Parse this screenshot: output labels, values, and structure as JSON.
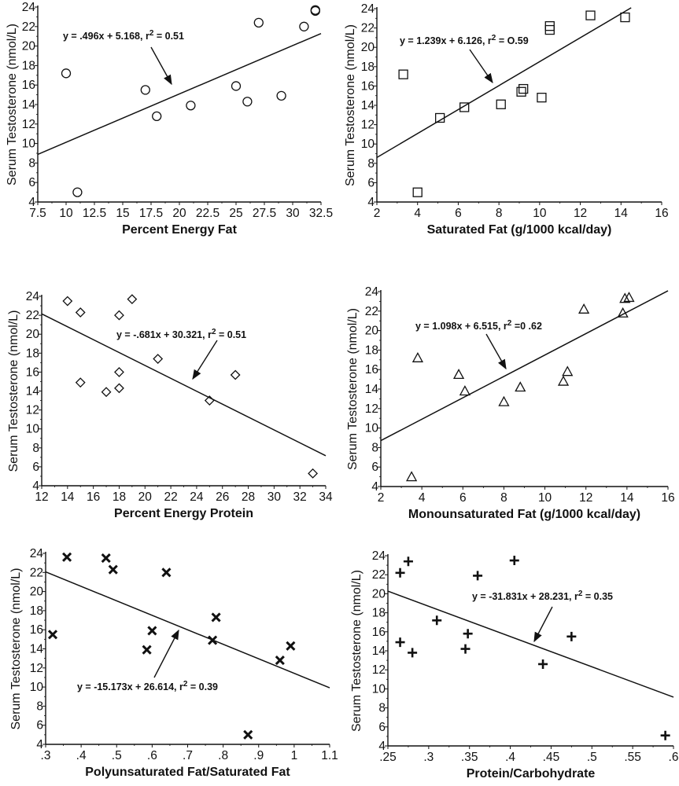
{
  "chart_data": [
    {
      "type": "scatter",
      "marker": "circle",
      "xlabel": "Percent Energy Fat",
      "ylabel": "Serum Testosterone  (nmol/L)",
      "xlim": [
        7.5,
        32.5
      ],
      "ylim": [
        4,
        24
      ],
      "xticks": [
        {
          "v": 7.5,
          "t": "7.5"
        },
        {
          "v": 10,
          "t": "10"
        },
        {
          "v": 12.5,
          "t": "12.5"
        },
        {
          "v": 15,
          "t": "15"
        },
        {
          "v": 17.5,
          "t": "17.5"
        },
        {
          "v": 20,
          "t": "20"
        },
        {
          "v": 22.5,
          "t": "22.5"
        },
        {
          "v": 25,
          "t": "25"
        },
        {
          "v": 27.5,
          "t": "27.5"
        },
        {
          "v": 30,
          "t": "30"
        },
        {
          "v": 32.5,
          "t": "32.5"
        }
      ],
      "yticks": [
        {
          "v": 4,
          "t": "4"
        },
        {
          "v": 6,
          "t": "6"
        },
        {
          "v": 8,
          "t": "8"
        },
        {
          "v": 10,
          "t": "10"
        },
        {
          "v": 12,
          "t": "12"
        },
        {
          "v": 14,
          "t": "14"
        },
        {
          "v": 16,
          "t": "16"
        },
        {
          "v": 18,
          "t": "18"
        },
        {
          "v": 20,
          "t": "20"
        },
        {
          "v": 22,
          "t": "22"
        },
        {
          "v": 24,
          "t": "24"
        }
      ],
      "points": [
        [
          10,
          17.2
        ],
        [
          11,
          5
        ],
        [
          17,
          15.5
        ],
        [
          18,
          12.8
        ],
        [
          21,
          13.9
        ],
        [
          25,
          15.9
        ],
        [
          26,
          14.3
        ],
        [
          27,
          22.4
        ],
        [
          29,
          14.9
        ],
        [
          31,
          22
        ],
        [
          32,
          23.7
        ],
        [
          32,
          23.6
        ]
      ],
      "fit": {
        "slope": 0.496,
        "intercept": 5.168,
        "x_range": [
          7.5,
          32.5
        ]
      },
      "equation": {
        "main": "y = .496x + 5.168, r",
        "sup": "2",
        "tail": " = 0.51"
      }
    },
    {
      "type": "scatter",
      "marker": "square",
      "xlabel": "Saturated Fat (g/1000 kcal/day)",
      "ylabel": "Serum Testosterone (nmol/L)",
      "xlim": [
        2,
        16
      ],
      "ylim": [
        4,
        24
      ],
      "xticks": [
        {
          "v": 2,
          "t": "2"
        },
        {
          "v": 4,
          "t": "4"
        },
        {
          "v": 6,
          "t": "6"
        },
        {
          "v": 8,
          "t": "8"
        },
        {
          "v": 10,
          "t": "10"
        },
        {
          "v": 12,
          "t": "12"
        },
        {
          "v": 14,
          "t": "14"
        },
        {
          "v": 16,
          "t": "16"
        }
      ],
      "yticks": [
        {
          "v": 4,
          "t": "4"
        },
        {
          "v": 6,
          "t": "6"
        },
        {
          "v": 8,
          "t": "8"
        },
        {
          "v": 10,
          "t": "10"
        },
        {
          "v": 12,
          "t": "12"
        },
        {
          "v": 14,
          "t": "14"
        },
        {
          "v": 16,
          "t": "16"
        },
        {
          "v": 18,
          "t": "18"
        },
        {
          "v": 20,
          "t": "20"
        },
        {
          "v": 22,
          "t": "22"
        },
        {
          "v": 24,
          "t": "24"
        }
      ],
      "points": [
        [
          3.3,
          17.2
        ],
        [
          4,
          5
        ],
        [
          5.1,
          12.7
        ],
        [
          6.3,
          13.8
        ],
        [
          8.1,
          14.1
        ],
        [
          9.1,
          15.4
        ],
        [
          9.2,
          15.7
        ],
        [
          10.1,
          14.8
        ],
        [
          10.5,
          21.8
        ],
        [
          10.5,
          22.2
        ],
        [
          12.5,
          23.3
        ],
        [
          14.2,
          23.1
        ]
      ],
      "fit": {
        "slope": 1.239,
        "intercept": 6.126,
        "x_range": [
          2,
          14.5
        ]
      },
      "equation": {
        "main": "y = 1.239x + 6.126, r",
        "sup": "2",
        "tail": " = O.59"
      }
    },
    {
      "type": "scatter",
      "marker": "diamond",
      "xlabel": "Percent Energy Protein",
      "ylabel": "Serum Testosterone (nmol/L)",
      "xlim": [
        12,
        34
      ],
      "ylim": [
        4,
        24
      ],
      "xticks": [
        {
          "v": 12,
          "t": "12"
        },
        {
          "v": 14,
          "t": "14"
        },
        {
          "v": 16,
          "t": "16"
        },
        {
          "v": 18,
          "t": "18"
        },
        {
          "v": 20,
          "t": "20"
        },
        {
          "v": 22,
          "t": "22"
        },
        {
          "v": 24,
          "t": "24"
        },
        {
          "v": 26,
          "t": "26"
        },
        {
          "v": 28,
          "t": "28"
        },
        {
          "v": 30,
          "t": "30"
        },
        {
          "v": 32,
          "t": "32"
        },
        {
          "v": 34,
          "t": "34"
        }
      ],
      "yticks": [
        {
          "v": 4,
          "t": "4"
        },
        {
          "v": 6,
          "t": "6"
        },
        {
          "v": 8,
          "t": "8"
        },
        {
          "v": 10,
          "t": "10"
        },
        {
          "v": 12,
          "t": "12"
        },
        {
          "v": 14,
          "t": "14"
        },
        {
          "v": 16,
          "t": "16"
        },
        {
          "v": 18,
          "t": "18"
        },
        {
          "v": 20,
          "t": "20"
        },
        {
          "v": 22,
          "t": "22"
        },
        {
          "v": 24,
          "t": "24"
        }
      ],
      "points": [
        [
          14,
          23.5
        ],
        [
          15,
          22.3
        ],
        [
          15,
          14.9
        ],
        [
          17,
          13.9
        ],
        [
          18,
          22
        ],
        [
          18,
          16
        ],
        [
          18,
          14.3
        ],
        [
          19,
          23.7
        ],
        [
          21,
          17.4
        ],
        [
          25,
          13
        ],
        [
          27,
          15.7
        ],
        [
          33,
          5.3
        ]
      ],
      "fit": {
        "slope": -0.681,
        "intercept": 30.321,
        "x_range": [
          12,
          34
        ]
      },
      "equation": {
        "main": "y = -.681x + 30.321, r",
        "sup": "2",
        "tail": " = 0.51"
      }
    },
    {
      "type": "scatter",
      "marker": "triangle",
      "xlabel": "Monounsaturated Fat (g/1000 kcal/day)",
      "ylabel": "Serum Testosterone (nmol/L)",
      "xlim": [
        2,
        16
      ],
      "ylim": [
        4,
        24
      ],
      "xticks": [
        {
          "v": 2,
          "t": "2"
        },
        {
          "v": 4,
          "t": "4"
        },
        {
          "v": 6,
          "t": "6"
        },
        {
          "v": 8,
          "t": "8"
        },
        {
          "v": 10,
          "t": "10"
        },
        {
          "v": 12,
          "t": "12"
        },
        {
          "v": 14,
          "t": "14"
        },
        {
          "v": 16,
          "t": "16"
        }
      ],
      "yticks": [
        {
          "v": 4,
          "t": "4"
        },
        {
          "v": 6,
          "t": "6"
        },
        {
          "v": 8,
          "t": "8"
        },
        {
          "v": 10,
          "t": "10"
        },
        {
          "v": 12,
          "t": "12"
        },
        {
          "v": 14,
          "t": "14"
        },
        {
          "v": 16,
          "t": "16"
        },
        {
          "v": 18,
          "t": "18"
        },
        {
          "v": 20,
          "t": "20"
        },
        {
          "v": 22,
          "t": "22"
        },
        {
          "v": 24,
          "t": "24"
        }
      ],
      "points": [
        [
          3.5,
          5
        ],
        [
          3.8,
          17.2
        ],
        [
          5.8,
          15.5
        ],
        [
          6.1,
          13.8
        ],
        [
          8,
          12.7
        ],
        [
          8.8,
          14.2
        ],
        [
          10.9,
          14.8
        ],
        [
          11.1,
          15.8
        ],
        [
          11.9,
          22.2
        ],
        [
          13.8,
          21.8
        ],
        [
          13.9,
          23.3
        ],
        [
          14.1,
          23.4
        ]
      ],
      "fit": {
        "slope": 1.098,
        "intercept": 6.515,
        "x_range": [
          2,
          16
        ]
      },
      "equation": {
        "main": "y = 1.098x + 6.515, r",
        "sup": "2",
        "tail": " =0 .62"
      }
    },
    {
      "type": "scatter",
      "marker": "x",
      "xlabel": "Polyunsaturated Fat/Saturated Fat",
      "ylabel": "Serum Testosterone (nmol/L)",
      "xlim": [
        0.3,
        1.1
      ],
      "ylim": [
        4,
        24
      ],
      "xticks": [
        {
          "v": 0.3,
          "t": ".3"
        },
        {
          "v": 0.4,
          "t": ".4"
        },
        {
          "v": 0.5,
          "t": ".5"
        },
        {
          "v": 0.6,
          "t": ".6"
        },
        {
          "v": 0.7,
          "t": ".7"
        },
        {
          "v": 0.8,
          "t": ".8"
        },
        {
          "v": 0.9,
          "t": ".9"
        },
        {
          "v": 1.0,
          "t": "1"
        },
        {
          "v": 1.1,
          "t": "1.1"
        }
      ],
      "yticks": [
        {
          "v": 4,
          "t": "4"
        },
        {
          "v": 6,
          "t": "6"
        },
        {
          "v": 8,
          "t": "8"
        },
        {
          "v": 10,
          "t": "10"
        },
        {
          "v": 12,
          "t": "12"
        },
        {
          "v": 14,
          "t": "14"
        },
        {
          "v": 16,
          "t": "16"
        },
        {
          "v": 18,
          "t": "18"
        },
        {
          "v": 20,
          "t": "20"
        },
        {
          "v": 22,
          "t": "22"
        },
        {
          "v": 24,
          "t": "24"
        }
      ],
      "points": [
        [
          0.32,
          15.5
        ],
        [
          0.36,
          23.6
        ],
        [
          0.47,
          23.5
        ],
        [
          0.49,
          22.3
        ],
        [
          0.585,
          13.9
        ],
        [
          0.6,
          15.9
        ],
        [
          0.64,
          22
        ],
        [
          0.77,
          14.9
        ],
        [
          0.78,
          17.3
        ],
        [
          0.87,
          5
        ],
        [
          0.96,
          12.8
        ],
        [
          0.99,
          14.3
        ]
      ],
      "fit": {
        "slope": -15.173,
        "intercept": 26.614,
        "x_range": [
          0.3,
          1.1
        ]
      },
      "equation": {
        "main": "y = -15.173x + 26.614, r",
        "sup": "2",
        "tail": " = 0.39"
      }
    },
    {
      "type": "scatter",
      "marker": "plus",
      "xlabel": "Protein/Carbohydrate",
      "ylabel": "Serum Testosterone (nmol/L)",
      "xlim": [
        0.25,
        0.6
      ],
      "ylim": [
        4,
        24
      ],
      "xticks": [
        {
          "v": 0.25,
          "t": ".25"
        },
        {
          "v": 0.3,
          "t": ".3"
        },
        {
          "v": 0.35,
          "t": ".35"
        },
        {
          "v": 0.4,
          "t": ".4"
        },
        {
          "v": 0.45,
          "t": ".45"
        },
        {
          "v": 0.5,
          "t": ".5"
        },
        {
          "v": 0.55,
          "t": ".55"
        },
        {
          "v": 0.6,
          "t": ".6"
        }
      ],
      "yticks": [
        {
          "v": 4,
          "t": "4"
        },
        {
          "v": 6,
          "t": "6"
        },
        {
          "v": 8,
          "t": "8"
        },
        {
          "v": 10,
          "t": "10"
        },
        {
          "v": 12,
          "t": "12"
        },
        {
          "v": 14,
          "t": "14"
        },
        {
          "v": 16,
          "t": "16"
        },
        {
          "v": 18,
          "t": "18"
        },
        {
          "v": 20,
          "t": "20"
        },
        {
          "v": 22,
          "t": "22"
        },
        {
          "v": 24,
          "t": "24"
        }
      ],
      "points": [
        [
          0.265,
          22.2
        ],
        [
          0.265,
          14.9
        ],
        [
          0.275,
          23.4
        ],
        [
          0.28,
          13.8
        ],
        [
          0.31,
          17.2
        ],
        [
          0.345,
          14.2
        ],
        [
          0.348,
          15.8
        ],
        [
          0.36,
          21.9
        ],
        [
          0.405,
          23.5
        ],
        [
          0.44,
          12.6
        ],
        [
          0.475,
          15.5
        ],
        [
          0.59,
          5.1
        ]
      ],
      "fit": {
        "slope": -31.831,
        "intercept": 28.231,
        "x_range": [
          0.25,
          0.6
        ]
      },
      "equation": {
        "main": "y = -31.831x + 28.231, r",
        "sup": "2",
        "tail": " = 0.35"
      }
    }
  ]
}
